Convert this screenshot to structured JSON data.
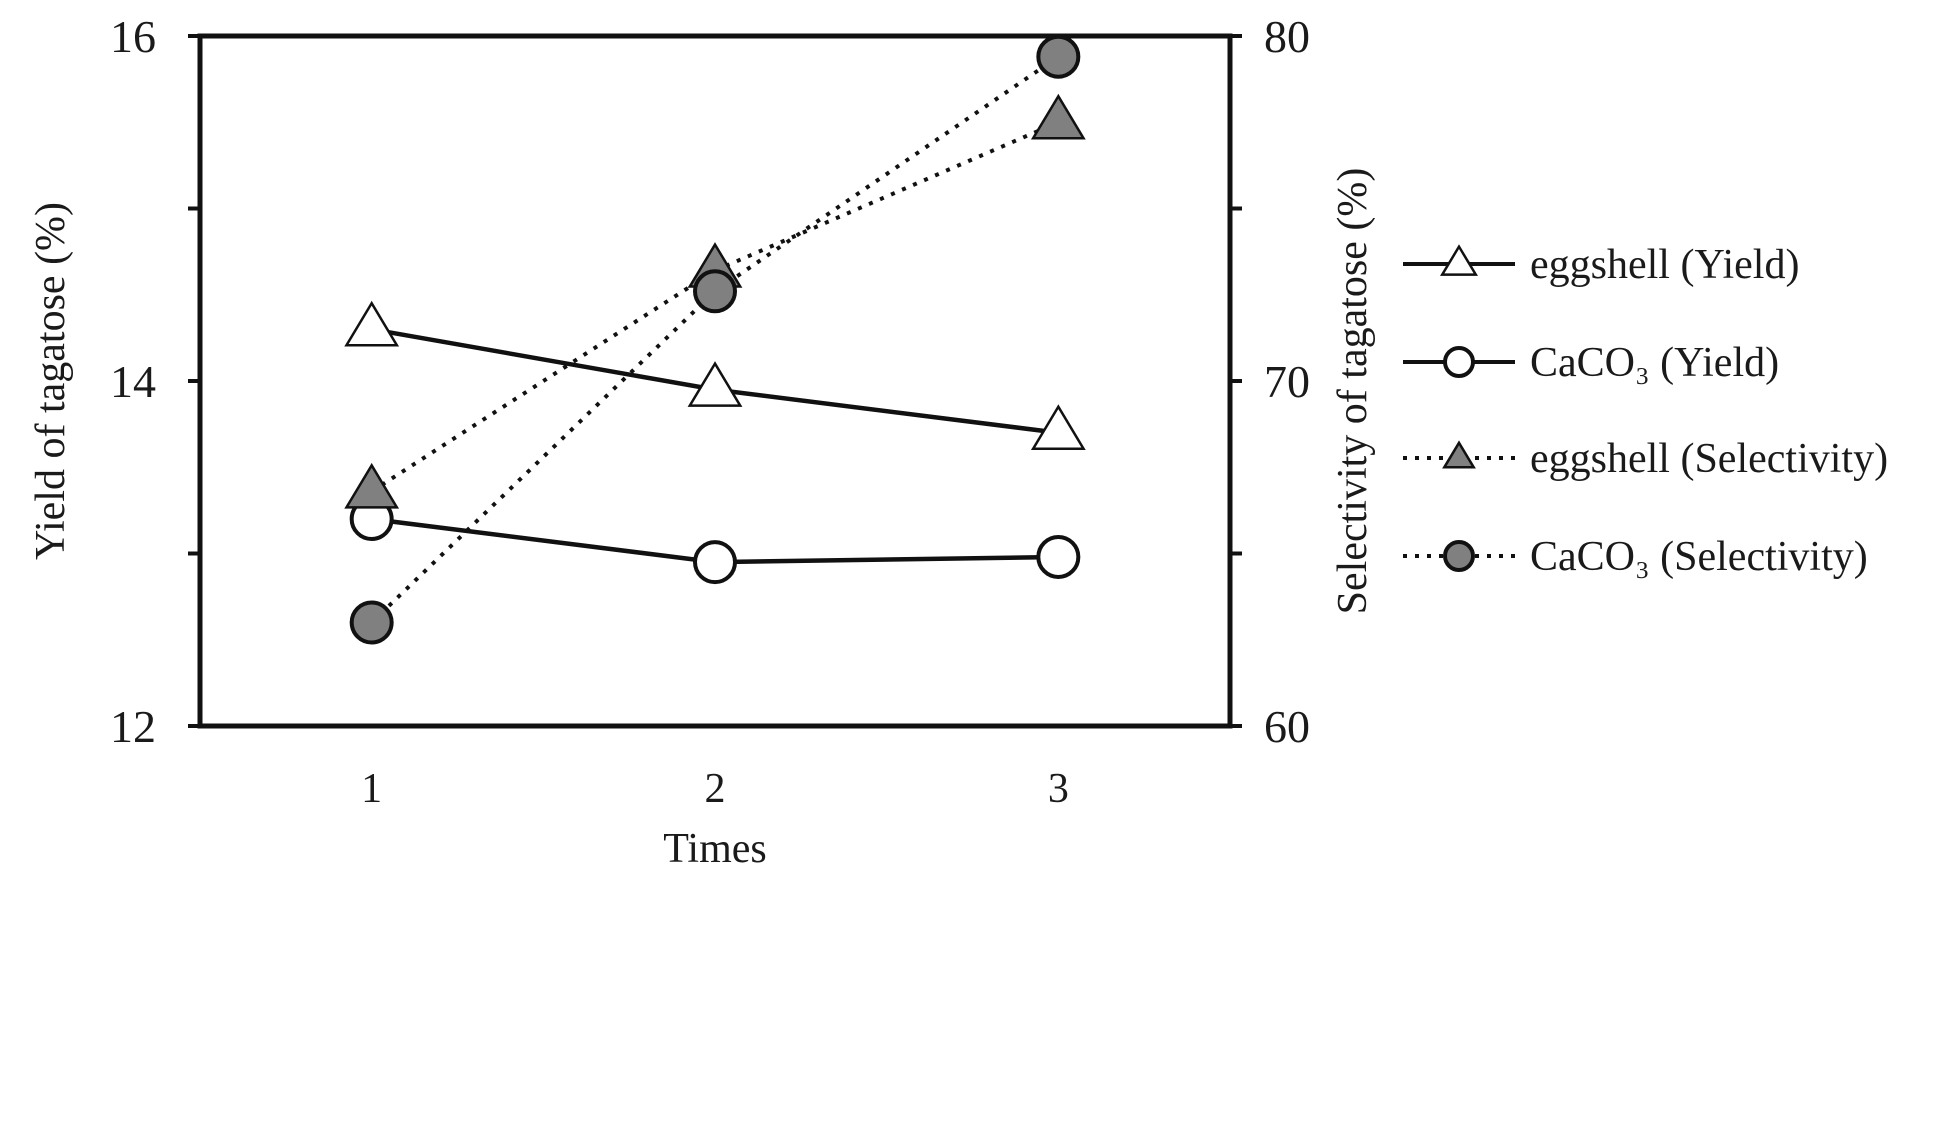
{
  "chart_data": {
    "type": "line",
    "xlabel": "Times",
    "ylabel_left": "Yield of tagatose (%)",
    "ylabel_right": "Selectivity of  tagatose (%)",
    "x": [
      1,
      2,
      3
    ],
    "x_tick_labels": [
      "1",
      "2",
      "3"
    ],
    "xlim": [
      0.5,
      3.5
    ],
    "ylim_left": [
      12,
      16
    ],
    "ylim_right": [
      60,
      80
    ],
    "yticks_left_labels": [
      "12",
      "14",
      "16"
    ],
    "yticks_right_labels": [
      "60",
      "70",
      "80"
    ],
    "grid": false,
    "legend_position": "right",
    "series": [
      {
        "name": "eggshell (Yield)",
        "axis": "left",
        "marker": "triangle",
        "fill": "#ffffff",
        "line": "solid",
        "values": [
          14.3,
          13.95,
          13.7
        ]
      },
      {
        "name": "CaCO₃ (Yield)",
        "axis": "left",
        "marker": "circle",
        "fill": "#ffffff",
        "line": "solid",
        "values": [
          13.2,
          12.95,
          12.98
        ]
      },
      {
        "name": "eggshell (Selectivity)",
        "axis": "right",
        "marker": "triangle",
        "fill": "#808080",
        "line": "dotted",
        "values": [
          66.8,
          73.2,
          77.5
        ]
      },
      {
        "name": "CaCO₃ (Selectivity)",
        "axis": "right",
        "marker": "circle",
        "fill": "#808080",
        "line": "dotted",
        "values": [
          63.0,
          72.6,
          79.4
        ]
      }
    ]
  }
}
